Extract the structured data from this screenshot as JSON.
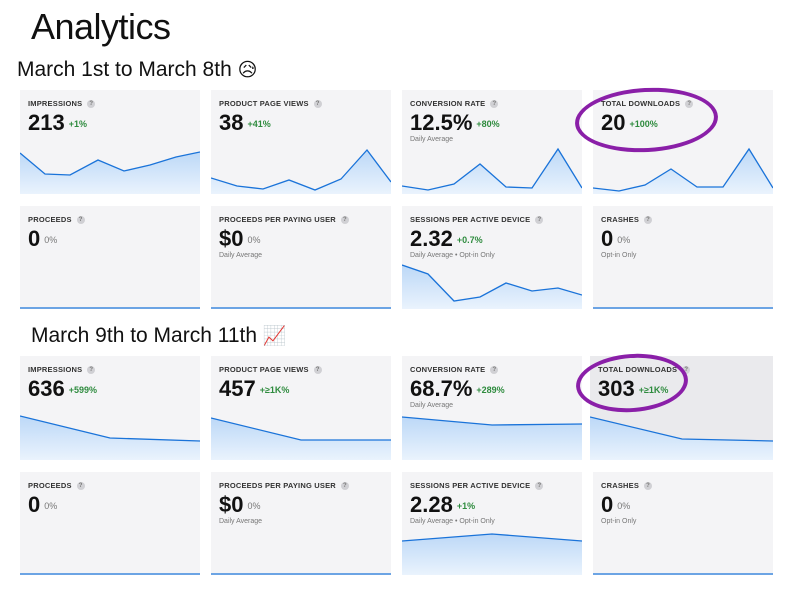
{
  "page": {
    "title": "Analytics"
  },
  "accent_color": "#1a73d9",
  "positive_color": "#2e8b3e",
  "annotation_color": "#8a1fa8",
  "sections": [
    {
      "title": "March 1st to March 8th",
      "emoji": "😥",
      "cards": [
        {
          "label": "IMPRESSIONS",
          "value": "213",
          "change": "+1%"
        },
        {
          "label": "PRODUCT PAGE VIEWS",
          "value": "38",
          "change": "+41%"
        },
        {
          "label": "CONVERSION RATE",
          "value": "12.5%",
          "change": "+80%",
          "sub": "Daily Average"
        },
        {
          "label": "TOTAL DOWNLOADS",
          "value": "20",
          "change": "+100%"
        },
        {
          "label": "PROCEEDS",
          "value": "0",
          "change": "0%"
        },
        {
          "label": "PROCEEDS PER PAYING USER",
          "value": "$0",
          "change": "0%",
          "sub": "Daily Average"
        },
        {
          "label": "SESSIONS PER ACTIVE DEVICE",
          "value": "2.32",
          "change": "+0.7%",
          "sub": "Daily Average • Opt-in Only"
        },
        {
          "label": "CRASHES",
          "value": "0",
          "change": "0%",
          "sub": "Opt-in Only"
        }
      ]
    },
    {
      "title": "March 9th to March 11th",
      "emoji": "📈",
      "cards": [
        {
          "label": "IMPRESSIONS",
          "value": "636",
          "change": "+599%"
        },
        {
          "label": "PRODUCT PAGE VIEWS",
          "value": "457",
          "change": "+≥1K%"
        },
        {
          "label": "CONVERSION RATE",
          "value": "68.7%",
          "change": "+289%",
          "sub": "Daily Average"
        },
        {
          "label": "TOTAL DOWNLOADS",
          "value": "303",
          "change": "+≥1K%"
        },
        {
          "label": "PROCEEDS",
          "value": "0",
          "change": "0%"
        },
        {
          "label": "PROCEEDS PER PAYING USER",
          "value": "$0",
          "change": "0%",
          "sub": "Daily Average"
        },
        {
          "label": "SESSIONS PER ACTIVE DEVICE",
          "value": "2.28",
          "change": "+1%",
          "sub": "Daily Average • Opt-in Only"
        },
        {
          "label": "CRASHES",
          "value": "0",
          "change": "0%",
          "sub": "Opt-in Only"
        }
      ]
    }
  ],
  "icons": {
    "help": "?",
    "help_icon_name": "help-icon"
  }
}
